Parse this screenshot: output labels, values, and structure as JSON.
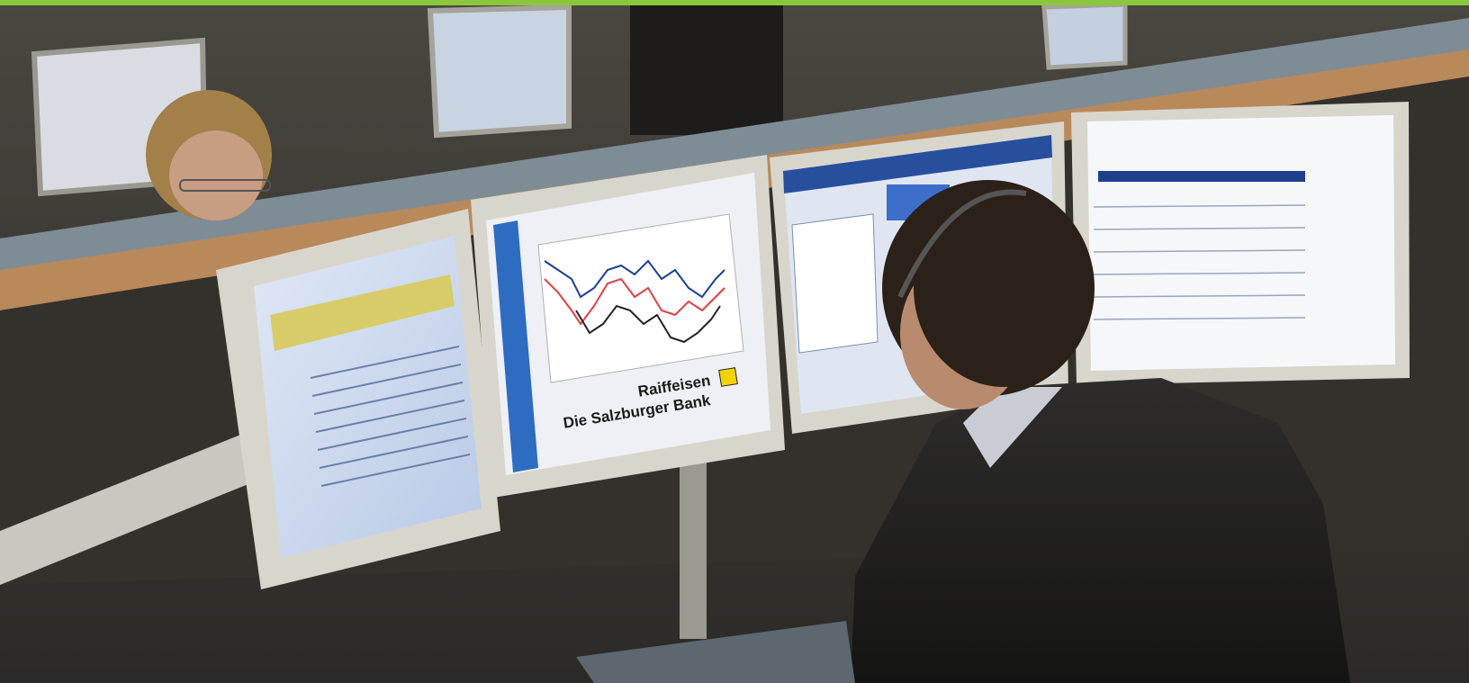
{
  "photo": {
    "monitor_logo": {
      "name": "Raiffeisen",
      "tagline": "Die Salzburger Bank"
    }
  }
}
